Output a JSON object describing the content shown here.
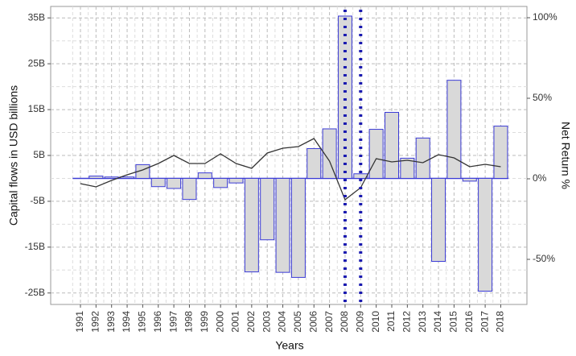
{
  "chart_data": {
    "type": "bar",
    "xlabel": "Years",
    "ylabel": "Capital flows in USD billions",
    "y2label": "Net Return %",
    "categories": [
      "1991",
      "1992",
      "1993",
      "1994",
      "1995",
      "1996",
      "1997",
      "1998",
      "1999",
      "2000",
      "2001",
      "2002",
      "2003",
      "2004",
      "2005",
      "2006",
      "2007",
      "2008",
      "2009",
      "2010",
      "2011",
      "2012",
      "2013",
      "2014",
      "2015",
      "2016",
      "2017",
      "2018"
    ],
    "series": [
      {
        "type": "bar",
        "color": "#d9d9d9",
        "edgecolor": "#3b3bd6",
        "values": [
          0,
          0.5,
          0.3,
          0.3,
          3,
          -1.8,
          -2.2,
          -4.6,
          1.2,
          -2,
          -1,
          -20.4,
          -13.4,
          -20.5,
          -21.6,
          6.5,
          10.8,
          35.4,
          1,
          10.7,
          14.4,
          4.4,
          8.8,
          -18.1,
          21.4,
          -0.6,
          -24.6,
          11.4
        ]
      },
      {
        "type": "line",
        "axis": "y2",
        "color": "#333333",
        "values": [
          -3,
          -5,
          -1,
          2.5,
          5.5,
          9.5,
          14.5,
          9.5,
          9.5,
          15.5,
          9.5,
          6.5,
          16,
          19,
          20,
          25,
          11,
          -13,
          -5.5,
          12.5,
          10.5,
          11.5,
          10,
          15,
          13,
          7.5,
          9,
          7.5
        ]
      }
    ],
    "ylim": [
      -27.5,
      37.5
    ],
    "yticks": [
      {
        "value": -25,
        "label": "-25B"
      },
      {
        "value": -15,
        "label": "-15B"
      },
      {
        "value": -5,
        "label": "-5B"
      },
      {
        "value": 5,
        "label": "5B"
      },
      {
        "value": 15,
        "label": "15B"
      },
      {
        "value": 25,
        "label": "25B"
      },
      {
        "value": 35,
        "label": "35B"
      }
    ],
    "y2lim": [
      -78,
      107
    ],
    "y2ticks": [
      {
        "value": -50,
        "label": "-50%"
      },
      {
        "value": 0,
        "label": "0%"
      },
      {
        "value": 50,
        "label": "50%"
      },
      {
        "value": 100,
        "label": "100%"
      }
    ],
    "grid": true
  }
}
